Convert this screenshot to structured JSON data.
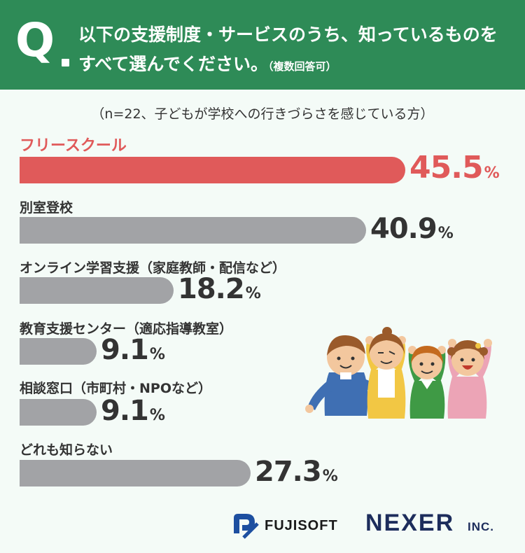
{
  "header": {
    "q_mark": "Q",
    "line1": "以下の支援制度・サービスのうち、知っているものを",
    "line2": "すべて選んでください。",
    "note": "（複数回答可）",
    "background": "#2e8b57"
  },
  "sample_note": "（n=22、子どもが学校への行きづらさを感じている方）",
  "chart_data": {
    "type": "bar",
    "orientation": "horizontal",
    "categories": [
      "フリースクール",
      "別室登校",
      "オンライン学習支援（家庭教師・配信など）",
      "教育支援センター（適応指導教室）",
      "相談窓口（市町村・NPOなど）",
      "どれも知らない"
    ],
    "values": [
      45.5,
      40.9,
      18.2,
      9.1,
      9.1,
      27.3
    ],
    "value_labels": [
      "45.5",
      "40.9",
      "18.2",
      "9.1",
      "9.1",
      "27.3"
    ],
    "unit": "%",
    "highlight_index": 0,
    "colors": {
      "highlight": "#e05a5a",
      "default": "#a2a3a6"
    }
  },
  "logos": {
    "fujisoft": "FUJISOFT",
    "nexer": "NEXER",
    "inc": "INC."
  },
  "illustration": {
    "icon": "children-cheering-illustration"
  }
}
